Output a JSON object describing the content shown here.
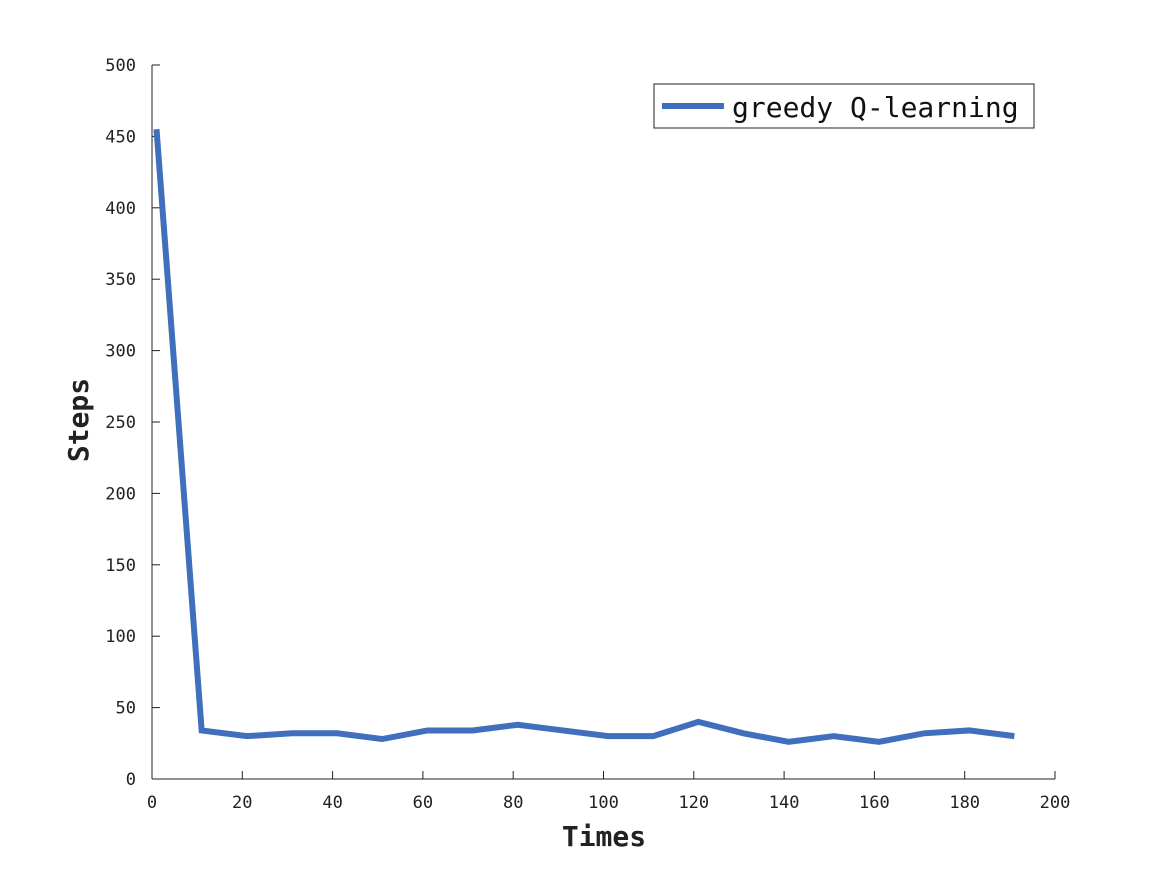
{
  "chart_data": {
    "type": "line",
    "title": "",
    "xlabel": "Times",
    "ylabel": "Steps",
    "xlim": [
      0,
      200
    ],
    "ylim": [
      0,
      500
    ],
    "xticks": [
      0,
      20,
      40,
      60,
      80,
      100,
      120,
      140,
      160,
      180,
      200
    ],
    "yticks": [
      0,
      50,
      100,
      150,
      200,
      250,
      300,
      350,
      400,
      450,
      500
    ],
    "grid": false,
    "legend_position": "top-right",
    "series": [
      {
        "name": "greedy Q-learning",
        "color": "#3f6fbd",
        "x": [
          1,
          11,
          21,
          31,
          41,
          51,
          61,
          71,
          81,
          91,
          101,
          111,
          121,
          131,
          141,
          151,
          161,
          171,
          181,
          191
        ],
        "y": [
          455,
          34,
          30,
          32,
          32,
          28,
          34,
          34,
          38,
          34,
          30,
          30,
          40,
          32,
          26,
          30,
          26,
          32,
          34,
          30
        ]
      }
    ]
  }
}
